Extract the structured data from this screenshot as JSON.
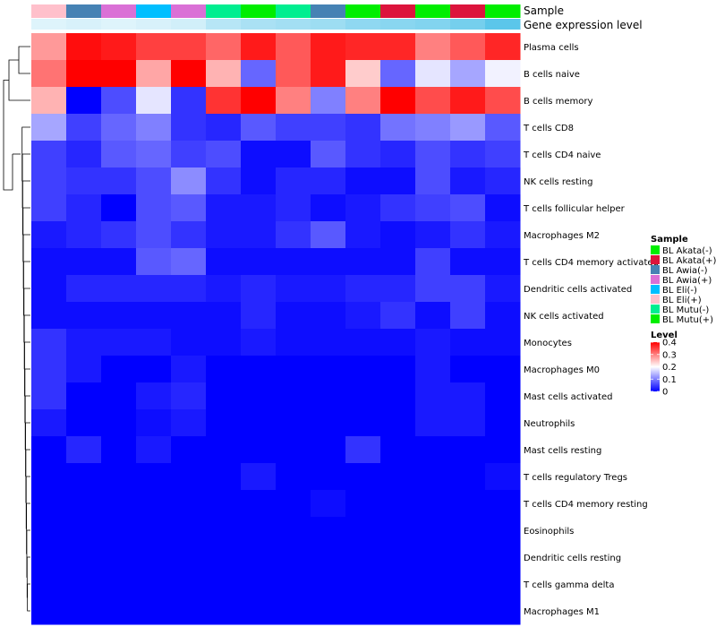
{
  "chart_data": {
    "type": "heatmap",
    "title": "",
    "annotation_labels": {
      "sample": "Sample",
      "gene_expression": "Gene expression level"
    },
    "columns": [
      "BL Eli(+)",
      "BL Awia(-)",
      "BL Awia(+)",
      "BL Eli(-)",
      "BL Awia(+)",
      "BL Mutu(-)",
      "BL Akata(-)",
      "BL Mutu(-)",
      "BL Awia(-)",
      "BL Akata(-)",
      "BL Akata(+)",
      "BL Akata(-)",
      "BL Akata(+)",
      "BL Akata(-)"
    ],
    "gene_expression": [
      0.02,
      0.03,
      0.02,
      0.03,
      0.04,
      0.08,
      0.1,
      0.11,
      0.12,
      0.14,
      0.15,
      0.16,
      0.18,
      0.22
    ],
    "rows": [
      "Plasma cells",
      "B cells naive",
      "B cells memory",
      "T cells CD8",
      "T cells CD4 naive",
      "NK cells resting",
      "T cells follicular helper",
      "Macrophages M2",
      "T cells CD4 memory activated",
      "Dendritic cells activated",
      "NK cells activated",
      "Monocytes",
      "Macrophages M0",
      "Mast cells activated",
      "Neutrophils",
      "Mast cells resting",
      "T cells regulatory  Tregs",
      "T cells CD4 memory resting",
      "Eosinophils",
      "Dendritic cells resting",
      "T cells gamma delta",
      "Macrophages M1"
    ],
    "values": [
      [
        0.28,
        0.39,
        0.38,
        0.35,
        0.35,
        0.32,
        0.38,
        0.33,
        0.38,
        0.37,
        0.37,
        0.3,
        0.33,
        0.37
      ],
      [
        0.31,
        0.4,
        0.4,
        0.27,
        0.4,
        0.26,
        0.08,
        0.33,
        0.38,
        0.24,
        0.08,
        0.18,
        0.13,
        0.19
      ],
      [
        0.26,
        0.0,
        0.06,
        0.18,
        0.04,
        0.36,
        0.4,
        0.3,
        0.1,
        0.3,
        0.4,
        0.34,
        0.38,
        0.34
      ],
      [
        0.13,
        0.05,
        0.08,
        0.1,
        0.04,
        0.03,
        0.07,
        0.05,
        0.05,
        0.04,
        0.09,
        0.1,
        0.12,
        0.07
      ],
      [
        0.05,
        0.03,
        0.07,
        0.08,
        0.05,
        0.06,
        0.01,
        0.01,
        0.07,
        0.04,
        0.03,
        0.06,
        0.04,
        0.05
      ],
      [
        0.05,
        0.04,
        0.04,
        0.06,
        0.11,
        0.04,
        0.01,
        0.03,
        0.03,
        0.01,
        0.01,
        0.06,
        0.02,
        0.03
      ],
      [
        0.05,
        0.03,
        0.0,
        0.06,
        0.07,
        0.02,
        0.02,
        0.03,
        0.01,
        0.02,
        0.04,
        0.05,
        0.06,
        0.01
      ],
      [
        0.02,
        0.03,
        0.04,
        0.06,
        0.04,
        0.02,
        0.02,
        0.04,
        0.07,
        0.02,
        0.01,
        0.02,
        0.04,
        0.02
      ],
      [
        0.01,
        0.01,
        0.01,
        0.07,
        0.08,
        0.01,
        0.01,
        0.01,
        0.01,
        0.01,
        0.01,
        0.05,
        0.01,
        0.01
      ],
      [
        0.01,
        0.03,
        0.03,
        0.03,
        0.03,
        0.02,
        0.03,
        0.02,
        0.02,
        0.03,
        0.03,
        0.05,
        0.05,
        0.02
      ],
      [
        0.01,
        0.01,
        0.01,
        0.01,
        0.01,
        0.01,
        0.03,
        0.01,
        0.01,
        0.02,
        0.04,
        0.01,
        0.05,
        0.01
      ],
      [
        0.04,
        0.02,
        0.02,
        0.02,
        0.01,
        0.01,
        0.02,
        0.01,
        0.01,
        0.01,
        0.01,
        0.02,
        0.01,
        0.01
      ],
      [
        0.04,
        0.02,
        0.0,
        0.0,
        0.02,
        0.0,
        0.0,
        0.0,
        0.0,
        0.0,
        0.0,
        0.02,
        0.0,
        0.0
      ],
      [
        0.04,
        0.0,
        0.0,
        0.02,
        0.03,
        0.0,
        0.0,
        0.0,
        0.0,
        0.0,
        0.0,
        0.02,
        0.02,
        0.0
      ],
      [
        0.02,
        0.0,
        0.0,
        0.01,
        0.02,
        0.0,
        0.0,
        0.0,
        0.0,
        0.0,
        0.0,
        0.02,
        0.02,
        0.0
      ],
      [
        0.0,
        0.03,
        0.0,
        0.02,
        0.0,
        0.0,
        0.0,
        0.0,
        0.0,
        0.04,
        0.0,
        0.0,
        0.0,
        0.0
      ],
      [
        0.0,
        0.0,
        0.0,
        0.0,
        0.0,
        0.0,
        0.02,
        0.0,
        0.0,
        0.0,
        0.0,
        0.0,
        0.0,
        0.01
      ],
      [
        0.0,
        0.0,
        0.0,
        0.0,
        0.0,
        0.0,
        0.0,
        0.0,
        0.01,
        0.0,
        0.0,
        0.0,
        0.0,
        0.0
      ],
      [
        0.0,
        0.0,
        0.0,
        0.0,
        0.0,
        0.0,
        0.0,
        0.0,
        0.0,
        0.0,
        0.0,
        0.0,
        0.0,
        0.0
      ],
      [
        0.0,
        0.0,
        0.0,
        0.0,
        0.0,
        0.0,
        0.0,
        0.0,
        0.0,
        0.0,
        0.0,
        0.0,
        0.0,
        0.0
      ],
      [
        0.0,
        0.0,
        0.0,
        0.0,
        0.0,
        0.0,
        0.0,
        0.0,
        0.0,
        0.0,
        0.0,
        0.0,
        0.0,
        0.0
      ],
      [
        0.0,
        0.0,
        0.0,
        0.0,
        0.0,
        0.0,
        0.0,
        0.0,
        0.0,
        0.0,
        0.0,
        0.0,
        0.0,
        0.0
      ]
    ],
    "dendrogram": "rows",
    "color_scale": {
      "title": "Level",
      "range": [
        0,
        0.4
      ],
      "ticks": [
        0.4,
        0.3,
        0.2,
        0.1,
        0
      ],
      "colors": [
        "#0000ff",
        "#ffffff",
        "#ff0000"
      ],
      "midpoint": 0.2
    },
    "gene_expression_colors": [
      "#ffffff",
      "#5bc6ea"
    ],
    "legend": {
      "title": "Sample",
      "position": "right",
      "entries": [
        {
          "label": "BL Akata(-)",
          "color": "#00ee00"
        },
        {
          "label": "BL Akata(+)",
          "color": "#dc143c"
        },
        {
          "label": "BL Awia(-)",
          "color": "#4682b4"
        },
        {
          "label": "BL Awia(+)",
          "color": "#da70d6"
        },
        {
          "label": "BL Eli(-)",
          "color": "#00bfff"
        },
        {
          "label": "BL Eli(+)",
          "color": "#ffc0cb"
        },
        {
          "label": "BL Mutu(-)",
          "color": "#00ee90"
        },
        {
          "label": "BL Mutu(+)",
          "color": "#00ee00"
        }
      ]
    }
  }
}
